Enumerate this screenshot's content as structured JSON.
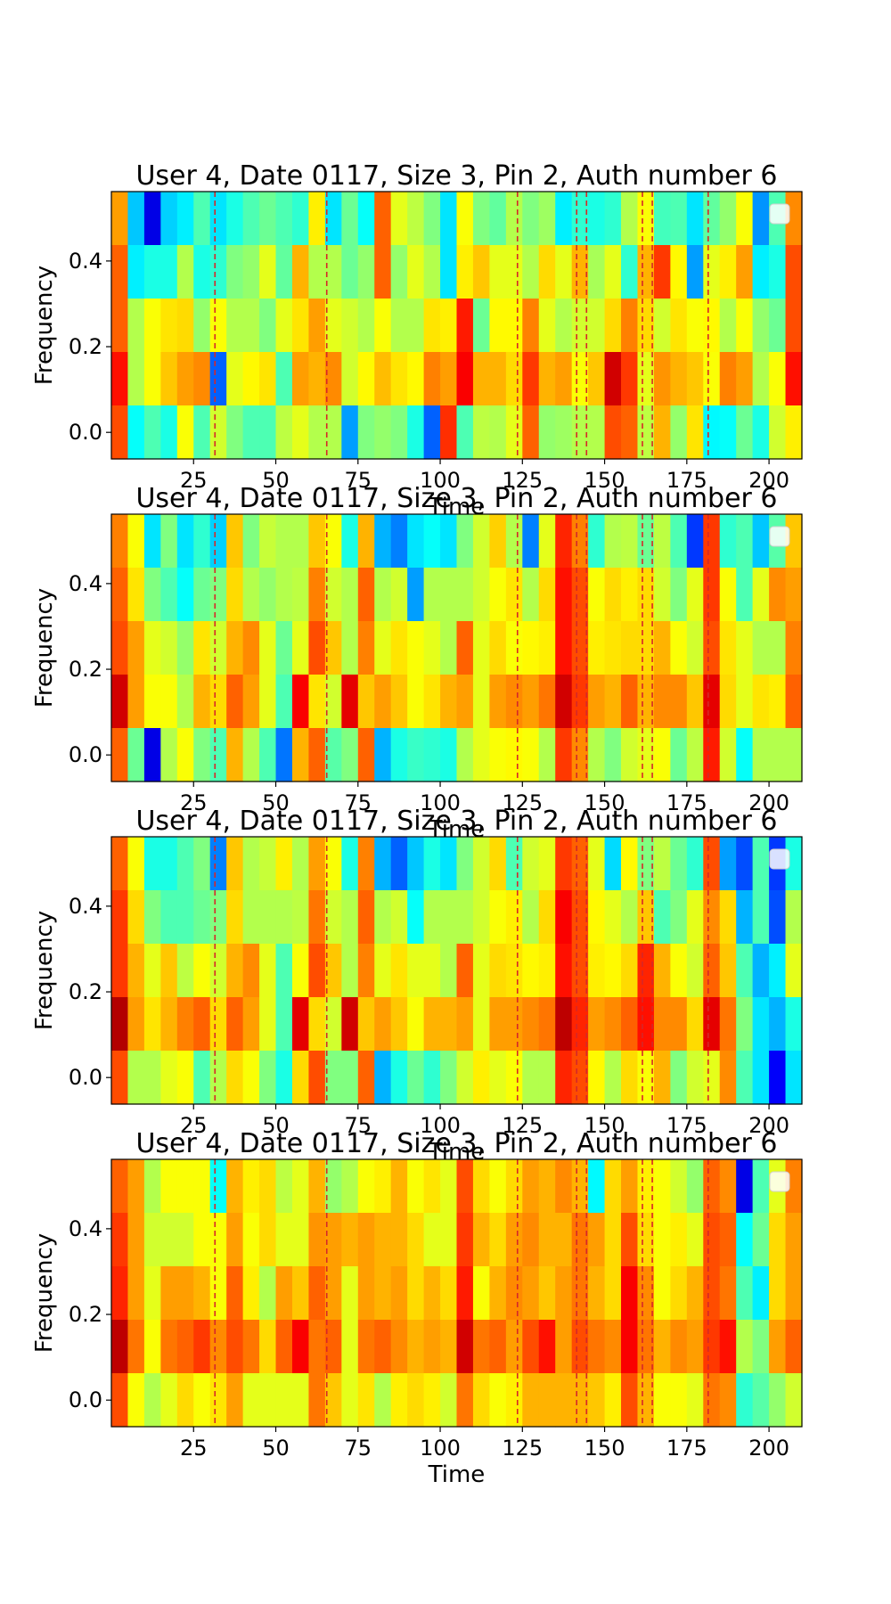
{
  "figure": {
    "layout": "4 vertically stacked subplots sharing the same axes ranges",
    "background": "#ffffff",
    "axis_color": "#000000",
    "event_line_color": "#d62728",
    "colormap": "jet"
  },
  "chart_data": [
    {
      "type": "heatmap",
      "title": "User 4, Date 0117, Size 3, Pin 2, Auth number 6",
      "xlabel": "Time",
      "ylabel": "Frequency",
      "xlim": [
        0,
        210
      ],
      "ylim": [
        -0.062,
        0.562
      ],
      "x_ticks": [
        25,
        50,
        75,
        100,
        125,
        150,
        175,
        200
      ],
      "x_tick_labels": [
        "25",
        "50",
        "75",
        "100",
        "125",
        "150",
        "175",
        "200"
      ],
      "y_ticks": [
        0.0,
        0.2,
        0.4
      ],
      "y_tick_labels": [
        "0.0",
        "0.2",
        "0.4"
      ],
      "frequency_bins": [
        0.0,
        0.125,
        0.25,
        0.375,
        0.5
      ],
      "time_bin_width": 5.6,
      "event_lines_x": [
        31.5,
        65.5,
        123.5,
        141.5,
        144.5,
        161.5,
        164.5,
        181.5
      ],
      "legend": "top-right (empty)",
      "rows": [
        [
          0.76,
          0.3,
          0.57,
          0.44,
          0.46,
          0.91,
          0.74,
          0.63,
          0.7,
          0.67,
          0.55,
          0.53,
          0.8,
          0.8,
          0.68,
          0.63,
          0.44,
          0.78,
          0.46,
          0.42,
          0.22,
          0.8,
          0.88,
          0.57,
          0.55,
          0.63,
          0.62,
          0.75,
          0.28,
          0.55,
          0.57,
          0.77,
          0.37,
          0.44,
          0.44,
          0.54,
          0.56,
          0.56,
          0.87,
          0.39,
          0.41,
          0.33,
          0.4,
          0.35,
          0.46,
          0.62,
          0.66,
          0.72,
          0.55,
          0.57,
          0.66,
          0.78,
          0.72,
          0.65,
          0.77,
          0.8,
          0.73,
          0.56,
          0.78,
          0.84,
          0.88,
          0.63,
          0.62,
          0.66,
          0.66,
          0.8,
          0.66,
          0.78,
          0.75,
          0.85,
          0.8,
          0.92,
          0.7,
          0.72,
          0.82,
          0.63,
          0.82,
          0.82,
          0.88,
          0.68,
          0.71,
          0.83,
          0.62,
          0.71,
          0.73,
          0.78,
          0.43,
          0.77,
          0.62,
          0.4,
          0.54,
          0.61,
          0.69,
          0.51,
          0.41,
          0.7,
          0.44,
          0.44,
          0.56,
          0.31,
          0.66,
          0.64,
          0.68,
          0.75,
          0.55,
          0.8,
          0.65,
          0.72,
          0.52,
          0.67,
          0.62,
          0.73,
          0.53,
          0.5,
          0.72,
          0.83,
          0.55,
          0.81,
          0.7,
          0.55,
          0.64,
          0.73,
          0.66,
          0.81,
          0.57,
          0.47,
          0.65,
          0.49,
          0.51,
          0.64,
          0.66,
          0.69,
          0.67,
          0.76,
          0.62,
          0.77,
          0.58,
          0.63,
          0.49,
          0.57,
          0.72,
          0.79,
          0.55,
          0.73,
          0.65,
          0.56,
          0.68,
          0.66,
          0.49,
          0.53,
          0.78,
          0.83,
          0.62,
          0.76,
          0.69,
          0.55,
          0.71,
          0.61,
          0.71,
          0.53,
          0.64,
          0.65,
          0.52,
          0.57,
          0.63,
          0.62,
          0.48,
          0.7,
          0.76,
          0.64,
          0.6,
          0.6,
          0.71,
          0.63,
          0.57,
          0.71,
          0.76,
          0.84,
          0.68,
          0.68,
          0.53,
          0.6,
          0.58,
          0.67,
          0.6,
          0.51,
          0.74,
          0.54,
          0.66,
          0.8,
          0.67,
          0.62,
          0.79,
          0.68,
          0.53,
          0.76,
          0.72,
          0.71,
          0.68,
          0.85,
          0.55,
          0.66,
          0.73,
          0.61,
          0.62,
          0.7,
          0.73,
          0.66,
          0.66,
          0.65,
          0.73,
          0.73,
          0.72
        ],
        [
          0.8,
          0.34,
          0.3,
          0.57,
          0.46,
          0.88,
          0.66,
          0.56,
          0.36,
          0.74,
          0.3,
          0.5,
          0.73,
          0.73,
          0.56,
          0.36,
          0.36,
          0.77,
          0.62,
          0.53,
          0.28,
          0.91,
          0.9,
          0.53,
          0.36,
          0.85,
          0.8,
          0.75,
          0.57,
          0.3,
          0.62,
          0.53,
          0.51,
          0.74,
          0.54,
          0.72,
          0.58,
          0.39,
          0.62,
          0.78,
          0.66,
          0.46,
          0.33,
          0.52,
          0.59,
          0.66,
          0.63,
          0.76,
          0.58,
          0.36,
          0.59,
          0.52,
          0.65,
          0.71,
          0.44,
          0.4,
          0.64,
          0.47,
          0.7,
          0.8,
          0.6,
          0.56,
          0.55,
          0.52,
          0.65,
          0.75,
          0.81,
          0.58,
          0.61,
          0.55,
          0.73,
          0.6,
          0.66,
          0.61,
          0.51,
          0.55,
          0.49,
          0.73,
          0.63,
          0.63,
          0.68,
          0.64,
          0.68,
          0.55,
          0.56,
          0.55,
          0.59,
          0.6,
          0.64,
          0.61,
          0.46,
          0.76,
          0.59,
          0.54,
          0.61,
          0.67,
          0.61,
          0.62,
          0.76,
          0.66,
          0.6,
          0.54,
          0.55,
          0.57,
          0.65,
          0.65,
          0.53,
          0.65,
          0.54,
          0.6,
          0.56,
          0.64,
          0.68,
          0.69,
          0.59,
          0.53,
          0.48,
          0.64,
          0.55,
          0.64,
          0.53,
          0.7,
          0.63,
          0.61,
          0.67,
          0.6,
          0.59,
          0.58,
          0.6,
          0.62,
          0.58,
          0.59,
          0.68,
          0.6,
          0.61,
          0.51,
          0.65,
          0.51,
          0.64,
          0.58,
          0.61,
          0.6,
          0.63,
          0.55,
          0.61,
          0.6,
          0.63,
          0.59,
          0.61,
          0.52,
          0.58,
          0.56,
          0.71,
          0.57,
          0.63,
          0.66,
          0.61,
          0.57,
          0.59,
          0.53,
          0.64,
          0.62,
          0.56,
          0.63,
          0.56,
          0.62,
          0.58,
          0.62,
          0.57,
          0.63,
          0.55,
          0.63,
          0.64,
          0.56,
          0.6,
          0.61,
          0.59,
          0.61,
          0.58,
          0.6,
          0.62,
          0.58,
          0.59,
          0.61,
          0.6,
          0.6,
          0.58,
          0.62,
          0.59,
          0.6,
          0.61,
          0.59,
          0.6,
          0.6,
          0.61,
          0.59,
          0.6,
          0.6,
          0.6,
          0.61,
          0.59,
          0.6,
          0.6,
          0.6,
          0.6,
          0.61,
          0.6,
          0.6,
          0.6,
          0.59,
          0.6,
          0.6,
          0.6,
          0.6
        ],
        [
          0.8,
          0.52,
          0.66,
          0.73,
          0.68,
          0.64,
          0.59,
          0.88,
          0.71,
          0.69,
          0.72,
          0.72,
          0.89,
          0.52,
          0.72,
          0.8,
          0.56,
          0.55,
          0.63,
          0.74,
          0.88,
          0.73,
          0.71,
          0.68,
          0.69,
          0.61,
          0.68,
          0.72,
          0.61,
          0.67,
          0.7,
          0.68,
          0.62,
          0.66,
          0.74,
          0.59,
          0.7,
          0.68,
          0.72,
          0.71,
          0.77,
          0.71,
          0.68,
          0.67,
          0.71,
          0.71,
          0.7,
          0.72,
          0.68,
          0.69,
          0.7,
          0.7,
          0.69,
          0.71,
          0.7,
          0.69,
          0.7,
          0.7,
          0.7,
          0.7,
          0.7,
          0.7,
          0.7,
          0.7,
          0.7,
          0.7,
          0.7,
          0.7,
          0.7,
          0.7,
          0.7,
          0.7,
          0.7,
          0.7,
          0.7,
          0.7,
          0.7,
          0.7,
          0.7,
          0.7,
          0.7,
          0.7,
          0.7,
          0.7,
          0.7,
          0.7,
          0.7,
          0.7,
          0.7,
          0.7,
          0.7,
          0.7,
          0.7,
          0.7,
          0.7,
          0.7,
          0.7,
          0.7,
          0.7,
          0.7,
          0.7,
          0.7,
          0.7,
          0.7,
          0.7,
          0.7,
          0.7,
          0.7,
          0.7,
          0.7,
          0.7,
          0.7,
          0.7,
          0.7,
          0.7,
          0.7,
          0.7,
          0.7,
          0.7,
          0.7,
          0.7,
          0.7,
          0.7,
          0.7,
          0.7,
          0.7,
          0.7,
          0.7,
          0.7,
          0.7,
          0.7,
          0.7,
          0.7,
          0.7,
          0.7,
          0.7,
          0.7,
          0.7,
          0.7,
          0.7,
          0.7,
          0.7,
          0.7,
          0.7,
          0.7,
          0.7,
          0.7,
          0.7,
          0.7,
          0.7,
          0.7,
          0.7,
          0.7,
          0.7,
          0.7,
          0.7,
          0.7,
          0.7,
          0.7,
          0.7,
          0.7,
          0.7,
          0.7,
          0.7,
          0.7,
          0.7,
          0.7,
          0.7,
          0.7,
          0.7,
          0.7,
          0.7,
          0.7,
          0.7,
          0.7,
          0.7,
          0.7,
          0.7,
          0.7,
          0.7,
          0.7,
          0.7,
          0.7,
          0.7,
          0.7,
          0.7,
          0.7,
          0.7,
          0.7,
          0.7,
          0.7,
          0.7,
          0.7,
          0.7,
          0.7,
          0.7,
          0.7,
          0.7,
          0.7,
          0.7,
          0.7,
          0.7,
          0.7,
          0.7,
          0.7,
          0.7,
          0.7,
          0.7,
          0.7,
          0.7,
          0.7,
          0.7,
          0.7,
          0.7,
          0.7
        ]
      ]
    }
  ]
}
